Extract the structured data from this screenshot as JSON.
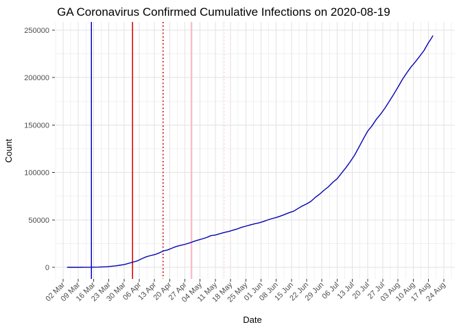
{
  "chart_data": {
    "type": "line",
    "title": "GA Coronavirus Confirmed Cumulative Infections on 2020-08-19",
    "xlabel": "Date",
    "ylabel": "Count",
    "legend": false,
    "grid": true,
    "x_range": [
      "2020-03-02",
      "2020-08-24"
    ],
    "ylim": [
      0,
      250000
    ],
    "x_tick_labels": [
      "02 Mar",
      "09 Mar",
      "16 Mar",
      "23 Mar",
      "30 Mar",
      "06 Apr",
      "13 Apr",
      "20 Apr",
      "27 Apr",
      "04 May",
      "11 May",
      "18 May",
      "25 May",
      "01 Jun",
      "08 Jun",
      "15 Jun",
      "22 Jun",
      "29 Jun",
      "06 Jul",
      "13 Jul",
      "20 Jul",
      "27 Jul",
      "03 Aug",
      "10 Aug",
      "17 Aug",
      "24 Aug"
    ],
    "y_ticks": [
      0,
      50000,
      100000,
      150000,
      200000,
      250000
    ],
    "y_tick_labels": [
      "0",
      "50000",
      "100000",
      "150000",
      "200000",
      "250000"
    ],
    "colors": {
      "line": "#0000b3",
      "grid_major": "#e2e2e2",
      "grid_minor": "#f0f0f0",
      "tick_mark": "#333333",
      "tick_text": "#4d4d4d",
      "title_text": "#000000"
    },
    "vlines": [
      {
        "date": "2020-03-15",
        "color": "#0000cd",
        "style": "solid"
      },
      {
        "date": "2020-04-03",
        "color": "#dd0000",
        "style": "solid"
      },
      {
        "date": "2020-04-17",
        "color": "#cc0000",
        "style": "dotted"
      },
      {
        "date": "2020-04-30",
        "color": "#ffb9c3",
        "style": "solid"
      },
      {
        "date": "2020-05-15",
        "color": "#ffd6dc",
        "style": "dotted"
      }
    ],
    "series": [
      {
        "name": "cumulative_confirmed_infections",
        "color": "#0000b3",
        "points": [
          [
            "2020-03-04",
            2
          ],
          [
            "2020-03-06",
            12
          ],
          [
            "2020-03-08",
            17
          ],
          [
            "2020-03-10",
            22
          ],
          [
            "2020-03-12",
            42
          ],
          [
            "2020-03-14",
            99
          ],
          [
            "2020-03-16",
            121
          ],
          [
            "2020-03-18",
            199
          ],
          [
            "2020-03-20",
            420
          ],
          [
            "2020-03-22",
            600
          ],
          [
            "2020-03-24",
            1026
          ],
          [
            "2020-03-26",
            1525
          ],
          [
            "2020-03-28",
            2198
          ],
          [
            "2020-03-30",
            2809
          ],
          [
            "2020-04-01",
            4117
          ],
          [
            "2020-04-03",
            5444
          ],
          [
            "2020-04-05",
            6647
          ],
          [
            "2020-04-07",
            8818
          ],
          [
            "2020-04-09",
            10885
          ],
          [
            "2020-04-11",
            12261
          ],
          [
            "2020-04-13",
            13315
          ],
          [
            "2020-04-15",
            14987
          ],
          [
            "2020-04-17",
            17194
          ],
          [
            "2020-04-19",
            18301
          ],
          [
            "2020-04-21",
            20166
          ],
          [
            "2020-04-23",
            21883
          ],
          [
            "2020-04-25",
            23216
          ],
          [
            "2020-04-27",
            24225
          ],
          [
            "2020-04-29",
            25571
          ],
          [
            "2020-05-01",
            27270
          ],
          [
            "2020-05-03",
            28671
          ],
          [
            "2020-05-05",
            29998
          ],
          [
            "2020-05-07",
            31439
          ],
          [
            "2020-05-09",
            33441
          ],
          [
            "2020-05-11",
            34002
          ],
          [
            "2020-05-13",
            35332
          ],
          [
            "2020-05-15",
            36681
          ],
          [
            "2020-05-17",
            37701
          ],
          [
            "2020-05-19",
            39094
          ],
          [
            "2020-05-21",
            40405
          ],
          [
            "2020-05-23",
            42132
          ],
          [
            "2020-05-25",
            43344
          ],
          [
            "2020-05-27",
            44638
          ],
          [
            "2020-05-29",
            45781
          ],
          [
            "2020-05-31",
            46851
          ],
          [
            "2020-06-02",
            48207
          ],
          [
            "2020-06-04",
            49847
          ],
          [
            "2020-06-06",
            51309
          ],
          [
            "2020-06-08",
            52497
          ],
          [
            "2020-06-10",
            54079
          ],
          [
            "2020-06-12",
            55783
          ],
          [
            "2020-06-14",
            57681
          ],
          [
            "2020-06-16",
            59078
          ],
          [
            "2020-06-18",
            62009
          ],
          [
            "2020-06-20",
            64701
          ],
          [
            "2020-06-22",
            66809
          ],
          [
            "2020-06-24",
            69681
          ],
          [
            "2020-06-26",
            73742
          ],
          [
            "2020-06-28",
            77210
          ],
          [
            "2020-06-30",
            81291
          ],
          [
            "2020-07-02",
            84863
          ],
          [
            "2020-07-04",
            89565
          ],
          [
            "2020-07-06",
            93319
          ],
          [
            "2020-07-08",
            99225
          ],
          [
            "2020-07-10",
            104895
          ],
          [
            "2020-07-12",
            111211
          ],
          [
            "2020-07-14",
            118147
          ],
          [
            "2020-07-16",
            126530
          ],
          [
            "2020-07-18",
            135183
          ],
          [
            "2020-07-20",
            143356
          ],
          [
            "2020-07-22",
            148988
          ],
          [
            "2020-07-24",
            155928
          ],
          [
            "2020-07-26",
            161401
          ],
          [
            "2020-07-28",
            167953
          ],
          [
            "2020-07-30",
            175052
          ],
          [
            "2020-08-01",
            182286
          ],
          [
            "2020-08-03",
            190012
          ],
          [
            "2020-08-05",
            197948
          ],
          [
            "2020-08-07",
            204895
          ],
          [
            "2020-08-09",
            211190
          ],
          [
            "2020-08-11",
            216596
          ],
          [
            "2020-08-13",
            222588
          ],
          [
            "2020-08-15",
            228668
          ],
          [
            "2020-08-17",
            236926
          ],
          [
            "2020-08-18",
            240106
          ],
          [
            "2020-08-19",
            243982
          ]
        ]
      }
    ]
  }
}
